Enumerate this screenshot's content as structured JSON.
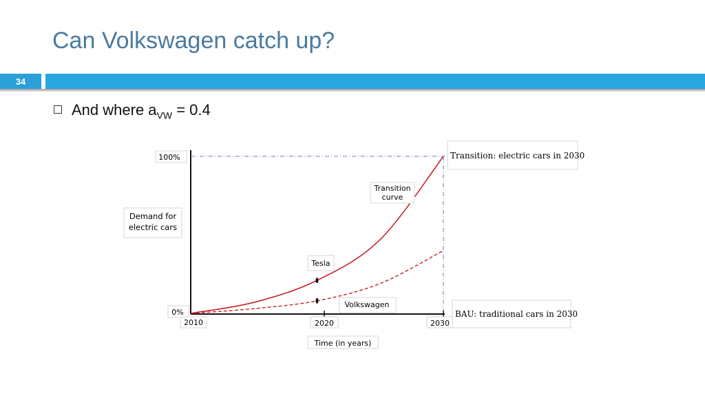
{
  "slide": {
    "title": "Can Volkswagen catch up?",
    "number": "34",
    "bullet": {
      "text_before": "And where a",
      "subscript": "VW",
      "text_after": " = 0.4"
    }
  },
  "chart_data": {
    "type": "line",
    "xlabel": "Time (in years)",
    "ylabel_line1": "Demand for",
    "ylabel_line2": "electric cars",
    "x_ticks": [
      "2010",
      "2020",
      "2030"
    ],
    "y_ticks": [
      "0%",
      "100%"
    ],
    "series": [
      {
        "name": "Transition curve",
        "style": "solid",
        "color": "#c8202a",
        "x": [
          2010,
          2015,
          2020,
          2025,
          2030
        ],
        "values": [
          0,
          7,
          21,
          47,
          100
        ]
      },
      {
        "name": "Volkswagen",
        "style": "dashed",
        "color": "#c8202a",
        "x": [
          2010,
          2015,
          2020,
          2025,
          2030
        ],
        "values": [
          0,
          3,
          8,
          19,
          40
        ]
      }
    ],
    "points": [
      {
        "label": "Tesla",
        "x": 2020,
        "y": 21
      },
      {
        "label": "Volkswagen",
        "x": 2020,
        "y": 8
      }
    ],
    "annotations": {
      "transition_curve_line1": "Transition",
      "transition_curve_line2": "curve",
      "top_right": "Transition: electric cars in 2030",
      "bottom_right": "BAU: traditional cars in 2030"
    }
  }
}
